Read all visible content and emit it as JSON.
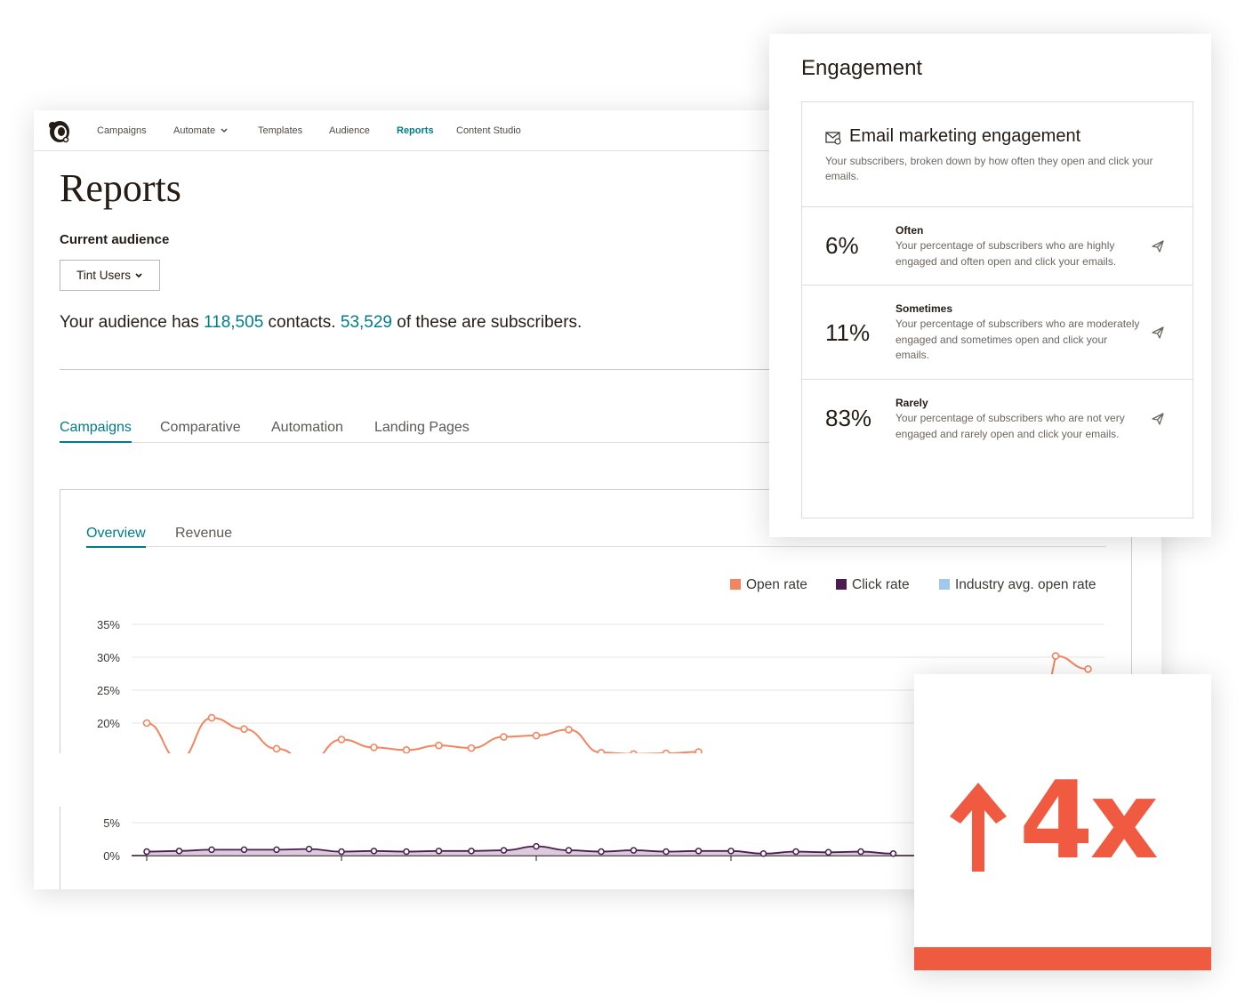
{
  "nav": {
    "items": [
      "Campaigns",
      "Automate",
      "Templates",
      "Audience",
      "Reports",
      "Content Studio"
    ],
    "active": "Reports"
  },
  "page": {
    "title": "Reports",
    "current_audience_label": "Current audience",
    "audience_select_value": "Tint Users",
    "audience_summary": {
      "prefix": "Your audience has ",
      "contacts": "118,505",
      "middle": " contacts. ",
      "subscribers": "53,529",
      "suffix": " of these are subscribers."
    }
  },
  "tabs": [
    "Campaigns",
    "Comparative",
    "Automation",
    "Landing Pages"
  ],
  "subtabs": [
    "Overview",
    "Revenue"
  ],
  "legend": [
    {
      "label": "Open rate",
      "color": "#f4845f"
    },
    {
      "label": "Click rate",
      "color": "#4b1d4f"
    },
    {
      "label": "Industry avg. open rate",
      "color": "#9fc8ec"
    }
  ],
  "chart_data": {
    "type": "line",
    "y_ticks": [
      "35%",
      "30%",
      "25%",
      "20%",
      "5%",
      "0%"
    ],
    "ylim": [
      0,
      35
    ],
    "series": [
      {
        "name": "Open rate",
        "color": "#f4845f",
        "values": [
          20,
          14.5,
          20.8,
          19.1,
          16.1,
          14.1,
          17.5,
          16.3,
          15.9,
          16.6,
          16.2,
          17.9,
          18.1,
          19,
          15.5,
          15.3,
          15.4,
          15.6,
          30.2,
          28.2
        ],
        "x_index": [
          0,
          1,
          2,
          3,
          4,
          5,
          6,
          7,
          8,
          9,
          10,
          11,
          12,
          13,
          14,
          15,
          16,
          17,
          28,
          29
        ]
      },
      {
        "name": "Click rate",
        "color": "#4b1d4f",
        "values": [
          0.6,
          0.7,
          0.9,
          0.9,
          0.9,
          1.0,
          0.6,
          0.7,
          0.6,
          0.7,
          0.7,
          0.8,
          1.4,
          0.8,
          0.6,
          0.8,
          0.6,
          0.7,
          0.7,
          0.3,
          0.6,
          0.5,
          0.6,
          0.3
        ],
        "x_index": [
          0,
          1,
          2,
          3,
          4,
          5,
          6,
          7,
          8,
          9,
          10,
          11,
          12,
          13,
          14,
          15,
          16,
          17,
          18,
          19,
          20,
          21,
          22,
          23
        ]
      }
    ]
  },
  "engagement": {
    "title": "Engagement",
    "card_title": "Email marketing engagement",
    "card_desc": "Your subscribers, broken down by how often they open and click your emails.",
    "rows": [
      {
        "pct": "6%",
        "label": "Often",
        "desc": "Your percentage of subscribers who are highly engaged and often open and click your emails."
      },
      {
        "pct": "11%",
        "label": "Sometimes",
        "desc": "Your percentage of subscribers who are moderately engaged and sometimes open and click your emails."
      },
      {
        "pct": "83%",
        "label": "Rarely",
        "desc": "Your percentage of subscribers who are not very engaged and rarely open and click your emails."
      }
    ]
  },
  "badge": {
    "text": "4x",
    "color": "#f05a40",
    "icon": "up-arrow-icon"
  }
}
